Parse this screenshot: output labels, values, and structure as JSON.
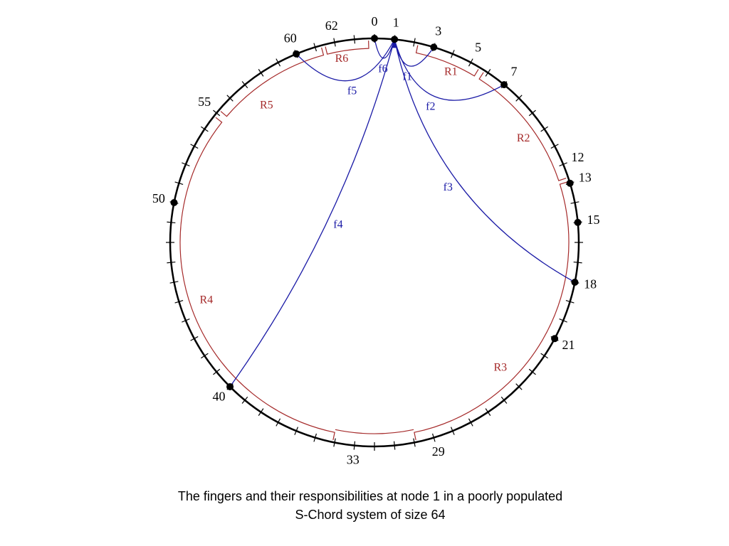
{
  "diagram": {
    "ring_labels": [
      0,
      1,
      3,
      5,
      7,
      12,
      13,
      15,
      18,
      21,
      29,
      33,
      40,
      50,
      55,
      60,
      62
    ],
    "live_nodes": [
      0,
      1,
      3,
      7,
      13,
      15,
      18,
      21,
      40,
      50,
      60
    ],
    "source": 1,
    "fingers": [
      {
        "label": "f1",
        "target": 3
      },
      {
        "label": "f2",
        "target": 7
      },
      {
        "label": "f3",
        "target": 18
      },
      {
        "label": "f4",
        "target": 40
      },
      {
        "label": "f5",
        "target": 60
      },
      {
        "label": "f6",
        "target": 0
      }
    ],
    "regions": [
      "R1",
      "R2",
      "R3",
      "R4",
      "R5",
      "R6"
    ],
    "ring_size": 64
  },
  "caption": [
    "The fingers and their responsibilities at node 1 in a poorly populated",
    "S-Chord system of size 64"
  ]
}
